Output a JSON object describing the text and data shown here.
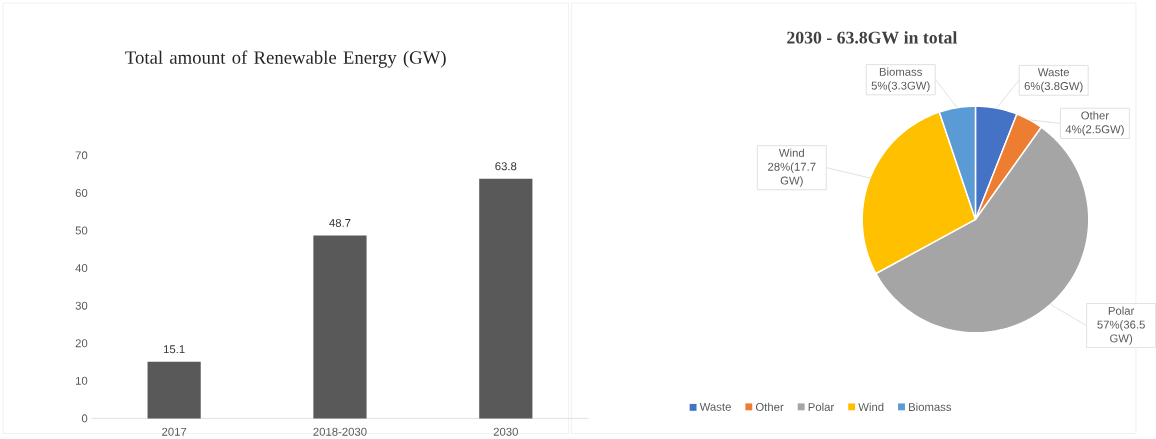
{
  "chart_data": [
    {
      "type": "bar",
      "title": "Total amount of Renewable Energy (GW)",
      "categories": [
        "2017",
        "2018-2030",
        "2030"
      ],
      "values": [
        15.1,
        48.7,
        63.8
      ],
      "color": "#595959",
      "ylim": [
        0,
        70
      ],
      "yticks": [
        0,
        10,
        20,
        30,
        40,
        50,
        60,
        70
      ],
      "data_labels": true
    },
    {
      "type": "pie",
      "title": "2030 - 63.8GW in total",
      "categories": [
        "Waste",
        "Other",
        "Polar",
        "Wind",
        "Biomass"
      ],
      "values": [
        3.8,
        2.5,
        36.5,
        17.7,
        3.3
      ],
      "colors": [
        "#4472c4",
        "#ed7d31",
        "#a5a5a5",
        "#ffc000",
        "#5b9bd5"
      ],
      "value_labels": [
        "6%(3.8GW)",
        "4%(2.5GW)",
        "57%(36.5 GW)",
        "28%(17.7 GW)",
        "5%(3.3GW)"
      ],
      "legend": "bottom"
    }
  ]
}
